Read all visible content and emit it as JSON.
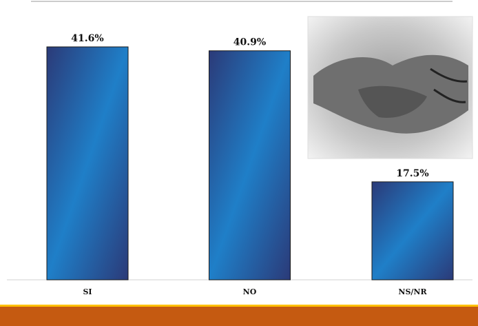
{
  "chart_data": {
    "type": "bar",
    "categories": [
      "SI",
      "NO",
      "NS/NR"
    ],
    "values": [
      41.6,
      40.9,
      17.5
    ],
    "value_labels": [
      "41.6%",
      "40.9%",
      "17.5%"
    ],
    "colors": [
      "#2b3a78",
      "#1f7fc8"
    ],
    "grid": false
  }
}
